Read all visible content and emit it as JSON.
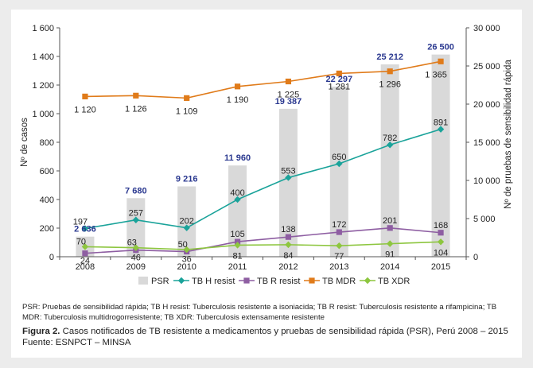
{
  "chart_data": {
    "type": "bar+line",
    "categories": [
      "2008",
      "2009",
      "2010",
      "2011",
      "2012",
      "2013",
      "2014",
      "2015"
    ],
    "y_left": {
      "label": "Nº de casos",
      "ylim": [
        0,
        1600
      ],
      "ticks": [
        "0",
        "200",
        "400",
        "600",
        "800",
        "1 000",
        "1 200",
        "1 400",
        "1 600"
      ],
      "tick_values": [
        0,
        200,
        400,
        600,
        800,
        1000,
        1200,
        1400,
        1600
      ]
    },
    "y_right": {
      "label": "Nº de pruebas de sensibilidad rápida",
      "ylim": [
        0,
        30000
      ],
      "ticks": [
        "0",
        "5 000",
        "10 000",
        "15 000",
        "20 000",
        "25 000",
        "30 000"
      ],
      "tick_values": [
        0,
        5000,
        10000,
        15000,
        20000,
        25000,
        30000
      ]
    },
    "bars": {
      "name": "PSR",
      "color": "#d9d9d9",
      "axis": "right",
      "values": [
        2636,
        7680,
        9216,
        11960,
        19387,
        22297,
        25212,
        26500
      ],
      "labels": [
        "2 636",
        "7 680",
        "9 216",
        "11 960",
        "19 387",
        "22 297",
        "25 212",
        "26 500"
      ]
    },
    "series": [
      {
        "name": "TB H resist",
        "color": "#1aa39a",
        "marker": "diamond",
        "values": [
          197,
          257,
          202,
          400,
          553,
          650,
          782,
          891
        ],
        "labels": [
          "197",
          "257",
          "202",
          "400",
          "553",
          "650",
          "782",
          "891"
        ]
      },
      {
        "name": "TB R resist",
        "color": "#8e5ea2",
        "marker": "square",
        "values": [
          24,
          46,
          36,
          105,
          138,
          172,
          201,
          168
        ],
        "labels": [
          "24",
          "46",
          "36",
          "105",
          "138",
          "172",
          "201",
          "168"
        ]
      },
      {
        "name": "TB MDR",
        "color": "#e07b1a",
        "marker": "square",
        "values": [
          1120,
          1126,
          1109,
          1190,
          1225,
          1281,
          1296,
          1365
        ],
        "labels": [
          "1 120",
          "1 126",
          "1 109",
          "1 190",
          "1 225",
          "1 281",
          "1 296",
          "1 365"
        ]
      },
      {
        "name": "TB XDR",
        "color": "#8dc63f",
        "marker": "diamond",
        "values": [
          70,
          63,
          50,
          81,
          84,
          77,
          91,
          104
        ],
        "labels": [
          "70",
          "63",
          "50",
          "81",
          "84",
          "77",
          "91",
          "104"
        ]
      }
    ],
    "legend_position": "bottom",
    "grid": false
  },
  "abbreviations": "PSR: Pruebas de sensibilidad rápida; TB H resist: Tuberculosis resistente a isoniacida; TB R resist: Tuberculosis resistente a rifampicina; TB MDR: Tuberculosis multidrogorresistente; TB XDR: Tuberculosis extensamente resistente",
  "caption": {
    "figure_label": "Figura 2.",
    "text": " Casos notificados de TB resistente a medicamentos y pruebas de sensibilidad rápida (PSR), Perú 2008 – 2015 Fuente: ESNPCT – MINSA"
  }
}
